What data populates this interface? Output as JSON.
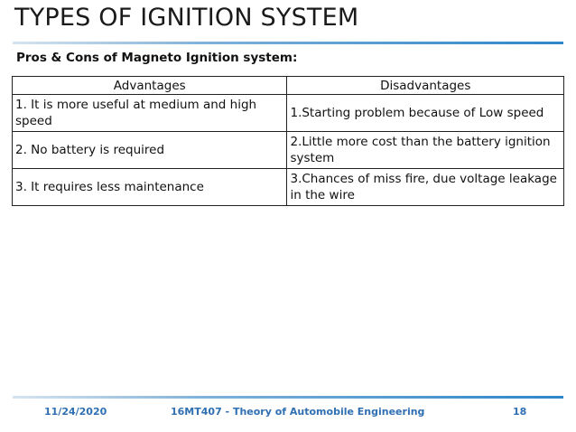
{
  "slide": {
    "title": "TYPES OF IGNITION SYSTEM",
    "subtitle": "Pros & Cons of Magneto Ignition system:"
  },
  "table": {
    "headers": [
      "Advantages",
      "Disadvantages"
    ],
    "rows": [
      [
        "1. It is more useful at medium and high speed",
        "1.Starting problem because of Low speed"
      ],
      [
        "2. No battery is required",
        "2.Little more cost than the battery ignition system"
      ],
      [
        "3. It requires less maintenance",
        "3.Chances of miss fire, due voltage leakage in the wire"
      ]
    ]
  },
  "footer": {
    "date": "11/24/2020",
    "course": "16MT407 - Theory of Automobile Engineering",
    "page": "18"
  },
  "colors": {
    "accent": "#2e86c8",
    "footer_text": "#2f6fb2"
  }
}
